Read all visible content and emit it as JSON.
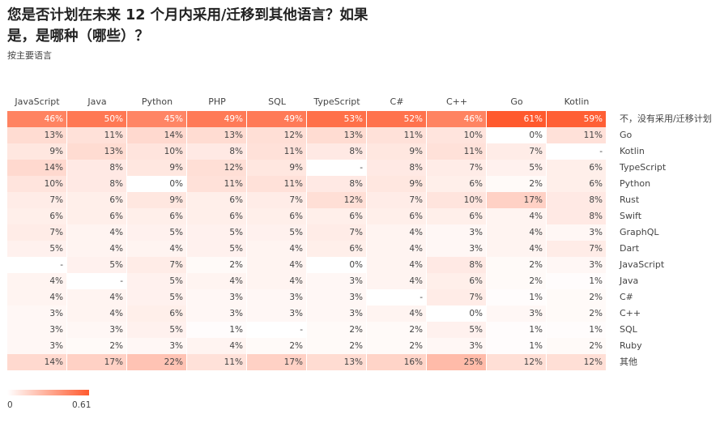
{
  "header": {
    "title": "您是否计划在未来 12 个月内采用/迁移到其他语言？如果是，是哪种（哪些）？",
    "subtitle": "按主要语言"
  },
  "legend": {
    "min_label": "0",
    "max_label": "0.61",
    "color_low": "#ffffff",
    "color_high": "#ff5a2e"
  },
  "chart_data": {
    "type": "heatmap",
    "title": "您是否计划在未来 12 个月内采用/迁移到其他语言？如果是，是哪种（哪些）？",
    "subtitle": "按主要语言",
    "columns": [
      "JavaScript",
      "Java",
      "Python",
      "PHP",
      "SQL",
      "TypeScript",
      "C#",
      "C++",
      "Go",
      "Kotlin"
    ],
    "rows": [
      "不，没有采用/迁移计划",
      "Go",
      "Kotlin",
      "TypeScript",
      "Python",
      "Rust",
      "Swift",
      "GraphQL",
      "Dart",
      "JavaScript",
      "Java",
      "C#",
      "C++",
      "SQL",
      "Ruby",
      "其他"
    ],
    "values": [
      [
        46,
        50,
        45,
        49,
        49,
        53,
        52,
        46,
        61,
        59
      ],
      [
        13,
        11,
        14,
        13,
        12,
        13,
        11,
        10,
        0,
        11
      ],
      [
        9,
        13,
        10,
        8,
        11,
        8,
        9,
        11,
        7,
        null
      ],
      [
        14,
        8,
        9,
        12,
        9,
        null,
        8,
        7,
        5,
        6
      ],
      [
        10,
        8,
        0,
        11,
        11,
        8,
        9,
        6,
        2,
        6
      ],
      [
        7,
        6,
        9,
        6,
        7,
        12,
        7,
        10,
        17,
        8
      ],
      [
        6,
        6,
        6,
        6,
        6,
        6,
        6,
        6,
        4,
        8
      ],
      [
        7,
        4,
        5,
        5,
        5,
        7,
        4,
        3,
        4,
        3
      ],
      [
        5,
        4,
        4,
        5,
        4,
        6,
        4,
        3,
        4,
        7
      ],
      [
        null,
        5,
        7,
        2,
        4,
        0,
        4,
        8,
        2,
        3
      ],
      [
        4,
        null,
        5,
        4,
        4,
        3,
        4,
        6,
        2,
        1
      ],
      [
        4,
        4,
        5,
        3,
        3,
        3,
        null,
        7,
        1,
        2
      ],
      [
        3,
        4,
        6,
        3,
        3,
        3,
        4,
        0,
        3,
        2
      ],
      [
        3,
        3,
        5,
        1,
        null,
        2,
        2,
        5,
        1,
        1
      ],
      [
        3,
        2,
        3,
        4,
        2,
        2,
        2,
        3,
        1,
        2
      ],
      [
        14,
        17,
        22,
        11,
        17,
        13,
        16,
        25,
        12,
        12
      ]
    ],
    "unit": "%",
    "missing_label": "-",
    "color_range": [
      0,
      0.61
    ]
  }
}
